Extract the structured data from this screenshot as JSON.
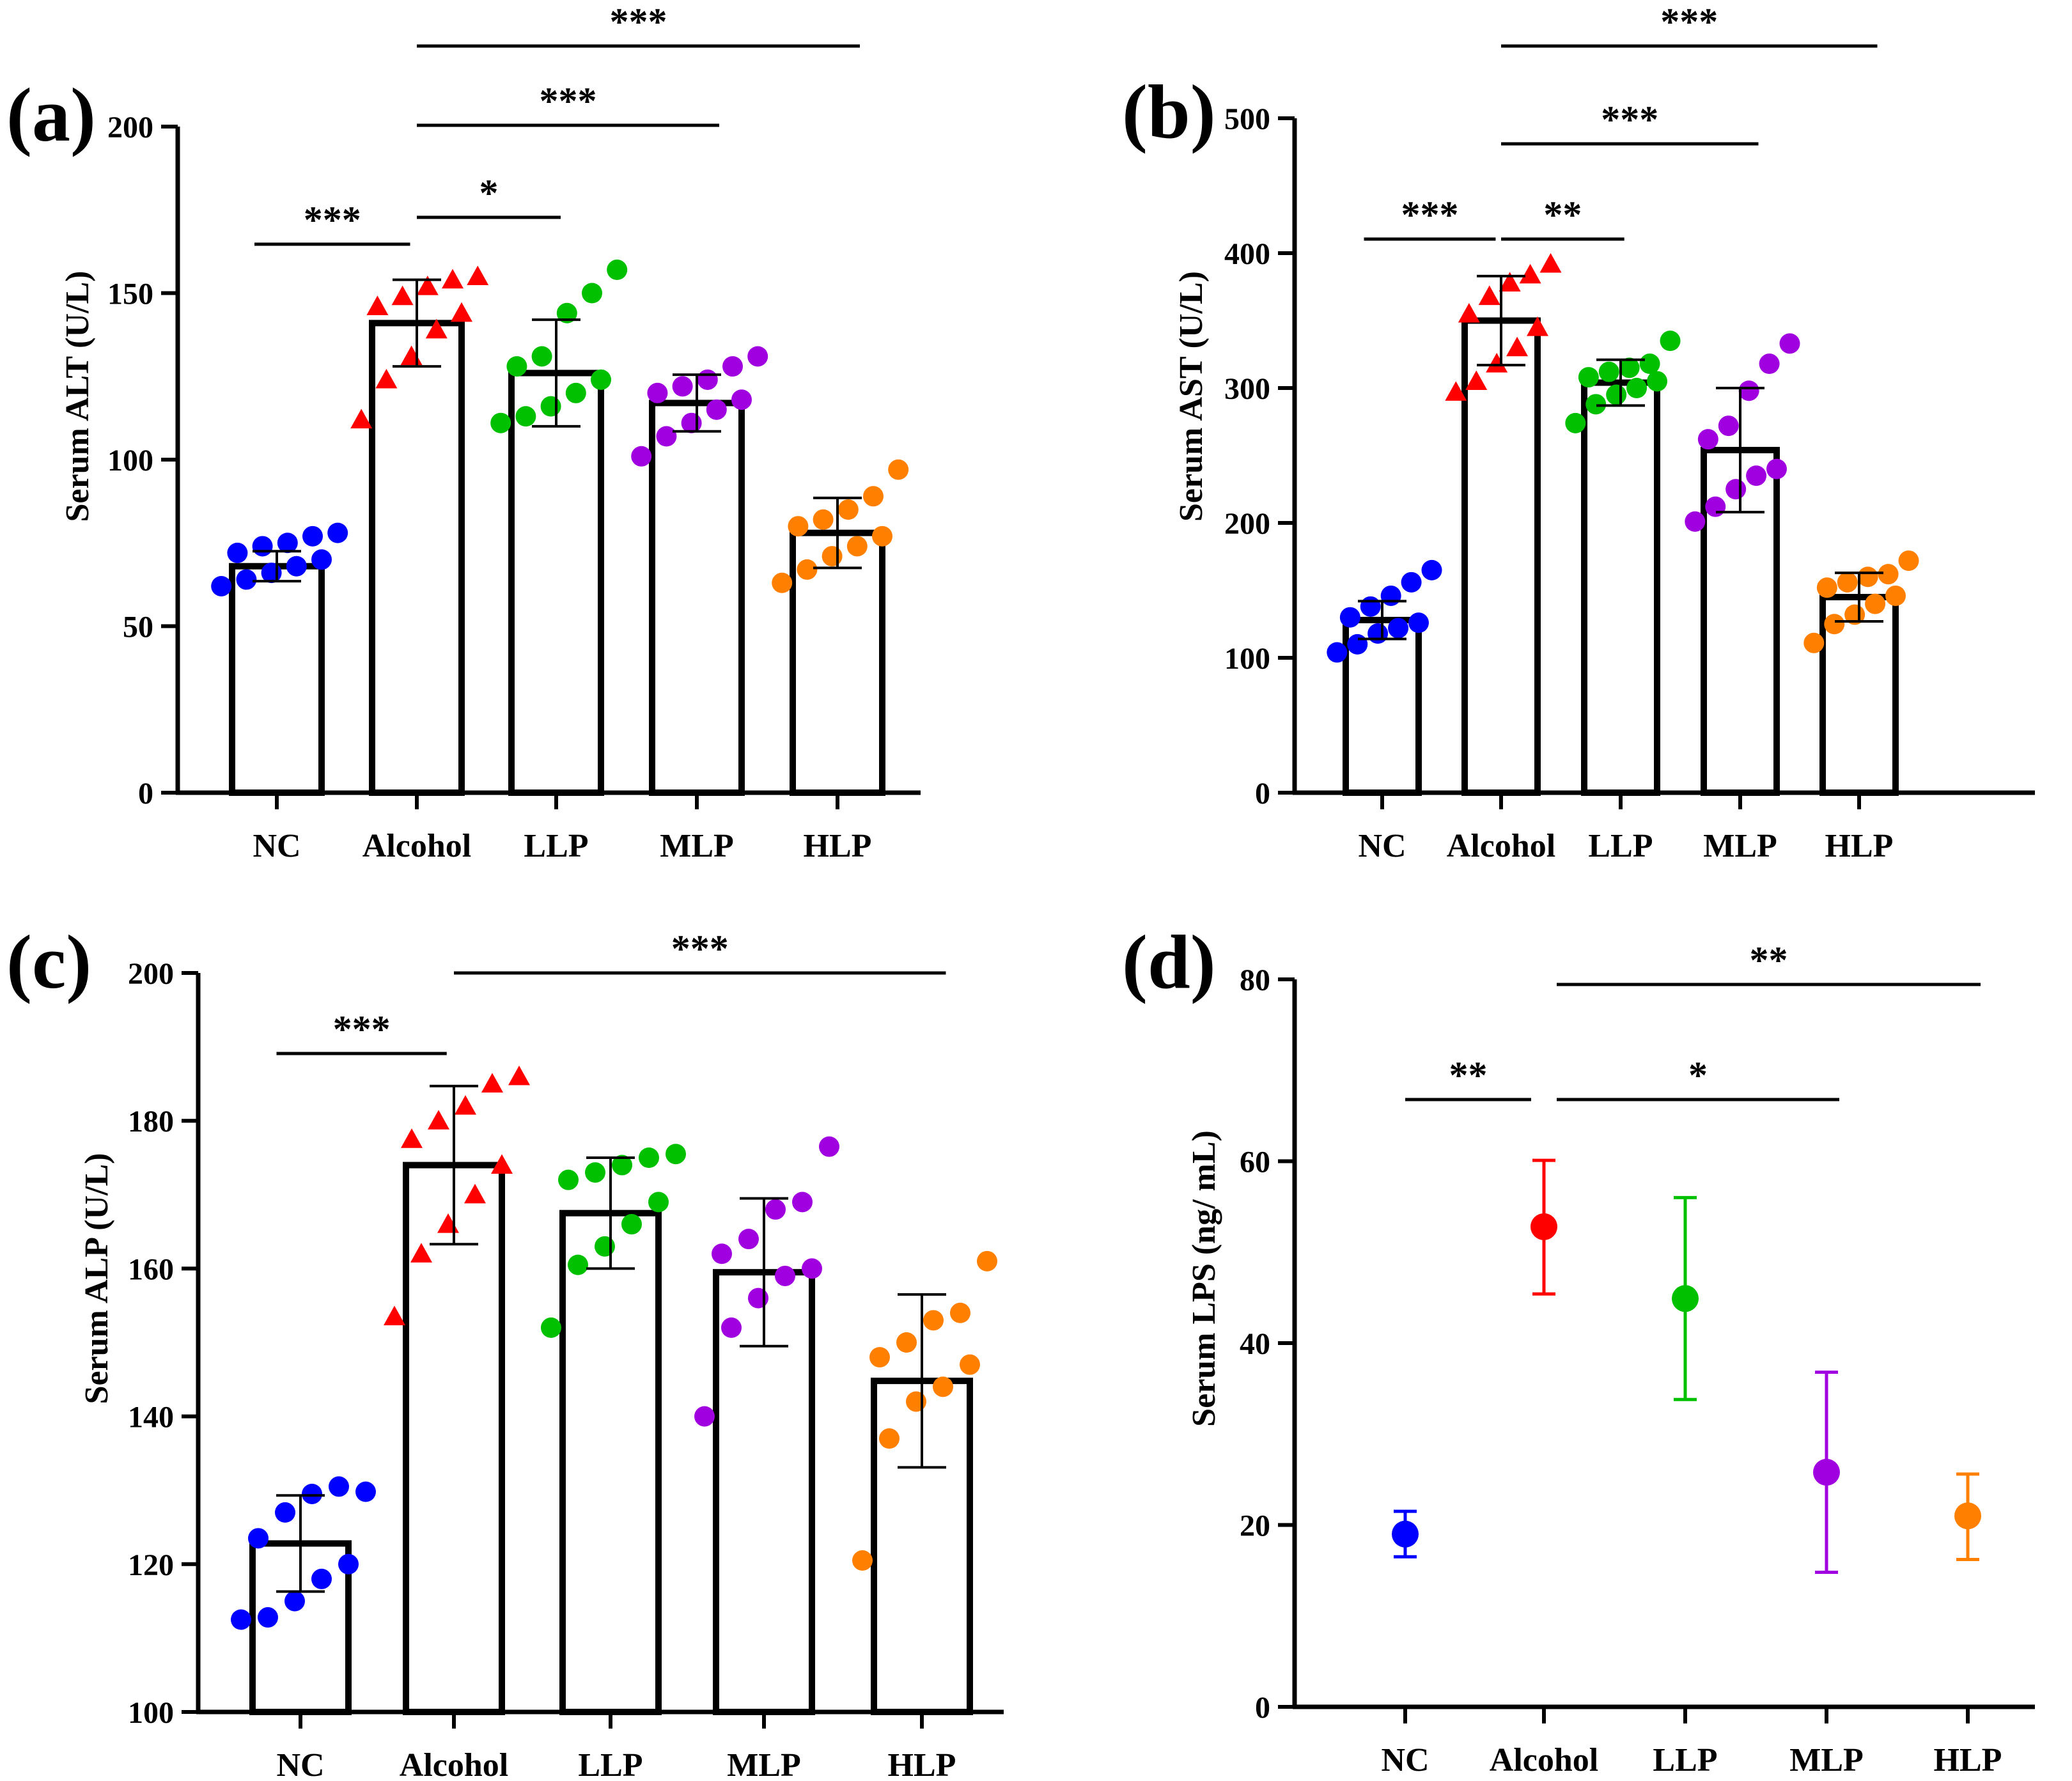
{
  "colors": {
    "NC": "#0000ff",
    "Alcohol": "#ff0000",
    "LLP": "#00c000",
    "MLP": "#a000e0",
    "HLP": "#ff8000"
  },
  "chart_data": [
    {
      "panel": "(a)",
      "type": "bar",
      "ylabel": "Serum ALT (U/L)",
      "ylim": [
        0,
        200
      ],
      "yticks": [
        0,
        50,
        100,
        150,
        200
      ],
      "categories": [
        "NC",
        "Alcohol",
        "LLP",
        "MLP",
        "HLP"
      ],
      "values": [
        68,
        141,
        126,
        117,
        78
      ],
      "sd": [
        4.5,
        13,
        16,
        8.5,
        10.5
      ],
      "markers": [
        "circle",
        "triangle",
        "circle",
        "circle",
        "circle"
      ],
      "points": [
        [
          62,
          64,
          66,
          68,
          70,
          72,
          74,
          75,
          77,
          78
        ],
        [
          112,
          124,
          131,
          139,
          144,
          146,
          149,
          152,
          154,
          155
        ],
        [
          111,
          113,
          116,
          120,
          124,
          128,
          131,
          144,
          150,
          157
        ],
        [
          101,
          107,
          111,
          115,
          118,
          120,
          122,
          124,
          128,
          131
        ],
        [
          63,
          67,
          71,
          74,
          77,
          80,
          82,
          85,
          89,
          97
        ]
      ],
      "significance": [
        {
          "from": 0,
          "to": 1,
          "label": "***"
        },
        {
          "from": 1,
          "to": 2,
          "label": "*"
        },
        {
          "from": 1,
          "to": 3,
          "label": "***"
        },
        {
          "from": 1,
          "to": 4,
          "label": "***"
        }
      ]
    },
    {
      "panel": "(b)",
      "type": "bar",
      "ylabel": "Serum AST (U/L)",
      "ylim": [
        0,
        500
      ],
      "yticks": [
        0,
        100,
        200,
        300,
        400,
        500
      ],
      "categories": [
        "NC",
        "Alcohol",
        "LLP",
        "MLP",
        "HLP"
      ],
      "values": [
        128,
        350,
        304,
        254,
        145
      ],
      "sd": [
        14,
        33,
        17,
        46,
        18
      ],
      "markers": [
        "circle",
        "triangle",
        "circle",
        "circle",
        "circle"
      ],
      "points": [
        [
          104,
          110,
          118,
          122,
          126,
          130,
          138,
          146,
          156,
          165
        ],
        [
          297,
          305,
          318,
          330,
          345,
          355,
          368,
          378,
          384,
          392
        ],
        [
          274,
          288,
          295,
          300,
          305,
          308,
          312,
          315,
          318,
          335
        ],
        [
          201,
          212,
          225,
          235,
          240,
          262,
          272,
          298,
          318,
          333
        ],
        [
          111,
          125,
          132,
          140,
          146,
          152,
          156,
          160,
          162,
          172
        ]
      ],
      "significance": [
        {
          "from": 0,
          "to": 1,
          "label": "***"
        },
        {
          "from": 1,
          "to": 2,
          "label": "**"
        },
        {
          "from": 1,
          "to": 3,
          "label": "***"
        },
        {
          "from": 1,
          "to": 4,
          "label": "***"
        }
      ]
    },
    {
      "panel": "(c)",
      "type": "bar",
      "ylabel": "Serum ALP (U/L)",
      "ylim": [
        100,
        200
      ],
      "yticks": [
        100,
        120,
        140,
        160,
        180,
        200
      ],
      "categories": [
        "NC",
        "Alcohol",
        "LLP",
        "MLP",
        "HLP"
      ],
      "values": [
        122.8,
        174,
        167.5,
        159.5,
        144.8
      ],
      "sd": [
        6.5,
        10.7,
        7.5,
        10,
        11.7
      ],
      "markers": [
        "circle",
        "circle",
        "circle",
        "circle",
        "circle"
      ],
      "alcohol_marker": "triangle",
      "points": [
        [
          112.5,
          112.8,
          115,
          118,
          120,
          123.5,
          127,
          129.5,
          130.5,
          129.8
        ],
        [
          153.5,
          162,
          166,
          170,
          174,
          177.5,
          180,
          182,
          185,
          186
        ],
        [
          152,
          160.5,
          163,
          166,
          169,
          172,
          173,
          174,
          175,
          175.5
        ],
        [
          140,
          152,
          156,
          159,
          160,
          162,
          164,
          168,
          169,
          176.5
        ],
        [
          120.5,
          137,
          142,
          144,
          147,
          148,
          150,
          153,
          154,
          161
        ]
      ],
      "significance": [
        {
          "from": 0,
          "to": 1,
          "label": "***"
        },
        {
          "from": 1,
          "to": 4,
          "label": "***"
        }
      ]
    },
    {
      "panel": "(d)",
      "type": "scatter",
      "ylabel": "Serum  LPS  (ng/ mL)",
      "ylim": [
        0,
        80
      ],
      "yticks": [
        0,
        20,
        40,
        60,
        80
      ],
      "categories": [
        "NC",
        "Alcohol",
        "LLP",
        "MLP",
        "HLP"
      ],
      "values": [
        19,
        52.8,
        44.9,
        25.8,
        21
      ],
      "err_low": [
        16.5,
        45.4,
        33.8,
        14.8,
        16.2
      ],
      "err_high": [
        21.5,
        60.1,
        56,
        36.8,
        25.6
      ],
      "significance": [
        {
          "from": 0,
          "to": 1,
          "label": "**"
        },
        {
          "from": 1,
          "to": 3,
          "label": "*"
        },
        {
          "from": 1,
          "to": 4,
          "label": "**"
        }
      ]
    }
  ]
}
